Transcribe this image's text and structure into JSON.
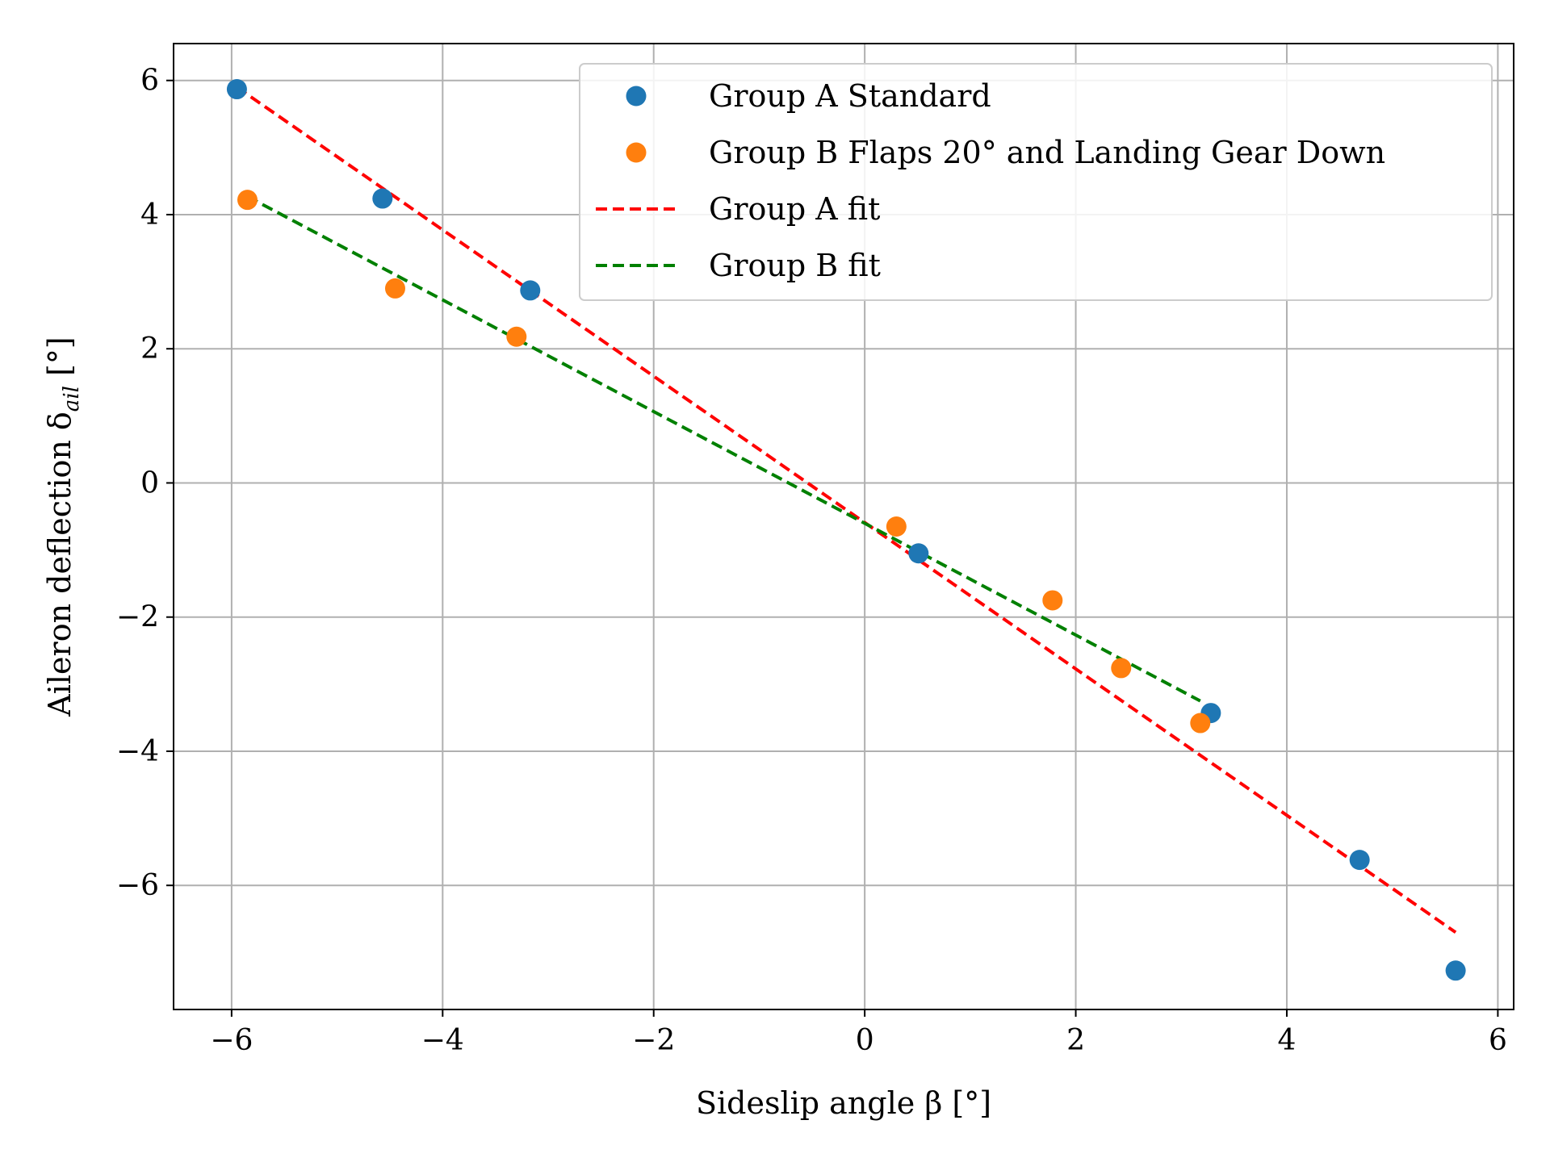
{
  "chart_data": {
    "type": "scatter",
    "xlabel": "Sideslip angle β [°]",
    "ylabel": "Aileron deflection δ",
    "ylabel_subscript": "ail",
    "ylabel_unit": "[°]",
    "xlim": [
      -6.55,
      6.15
    ],
    "ylim": [
      -7.85,
      6.55
    ],
    "xticks": [
      -6,
      -4,
      -2,
      0,
      2,
      4,
      6
    ],
    "yticks": [
      -6,
      -4,
      -2,
      0,
      2,
      4,
      6
    ],
    "xtick_labels": [
      "−6",
      "−4",
      "−2",
      "0",
      "2",
      "4",
      "6"
    ],
    "ytick_labels": [
      "−6",
      "−4",
      "−2",
      "0",
      "2",
      "4",
      "6"
    ],
    "grid": true,
    "legend_position": "top-right",
    "series": [
      {
        "name": "Group A Standard",
        "kind": "scatter",
        "color": "#1f77b4",
        "points": [
          {
            "x": -5.95,
            "y": 5.87
          },
          {
            "x": -4.57,
            "y": 4.24
          },
          {
            "x": -3.17,
            "y": 2.87
          },
          {
            "x": 0.51,
            "y": -1.05
          },
          {
            "x": 3.28,
            "y": -3.43
          },
          {
            "x": 4.69,
            "y": -5.62
          },
          {
            "x": 5.6,
            "y": -7.27
          }
        ]
      },
      {
        "name": "Group B Flaps 20° and Landing Gear Down",
        "kind": "scatter",
        "color": "#ff7f0e",
        "points": [
          {
            "x": -5.85,
            "y": 4.22
          },
          {
            "x": -4.45,
            "y": 2.9
          },
          {
            "x": -3.3,
            "y": 2.18
          },
          {
            "x": 0.3,
            "y": -0.65
          },
          {
            "x": 1.78,
            "y": -1.75
          },
          {
            "x": 2.43,
            "y": -2.76
          },
          {
            "x": 3.18,
            "y": -3.58
          }
        ]
      },
      {
        "name": "Group A fit",
        "kind": "line",
        "style": "dashed",
        "color": "#ff0000",
        "points": [
          {
            "x": -5.95,
            "y": 5.9
          },
          {
            "x": 5.6,
            "y": -6.7
          }
        ]
      },
      {
        "name": "Group B fit",
        "kind": "line",
        "style": "dashed",
        "color": "#008000",
        "points": [
          {
            "x": -5.85,
            "y": 4.27
          },
          {
            "x": 3.18,
            "y": -3.25
          }
        ]
      }
    ]
  }
}
